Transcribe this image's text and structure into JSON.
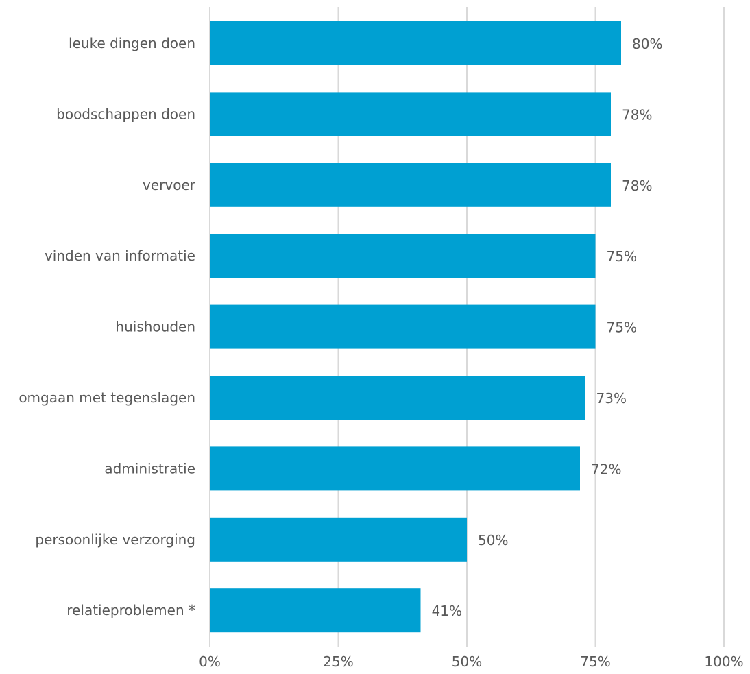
{
  "chart_data": {
    "type": "bar",
    "orientation": "horizontal",
    "title": "",
    "xlabel": "",
    "ylabel": "",
    "categories": [
      "leuke dingen doen",
      "boodschappen doen",
      "vervoer",
      "vinden van informatie",
      "huishouden",
      "omgaan met tegenslagen",
      "administratie",
      "persoonlijke verzorging",
      "relatieproblemen *"
    ],
    "values": [
      80,
      78,
      78,
      75,
      75,
      73,
      72,
      50,
      41
    ],
    "data_labels": [
      "80%",
      "78%",
      "78%",
      "75%",
      "75%",
      "73%",
      "72%",
      "50%",
      "41%"
    ],
    "xlim": [
      0,
      100
    ],
    "xticks": [
      0,
      25,
      50,
      75,
      100
    ],
    "xtick_labels": [
      "0%",
      "25%",
      "50%",
      "75%",
      "100%"
    ],
    "grid": "vertical",
    "legend": "none",
    "bar_color": "#00A0D2",
    "grid_color": "#D9D9D9",
    "text_color": "#595959"
  }
}
